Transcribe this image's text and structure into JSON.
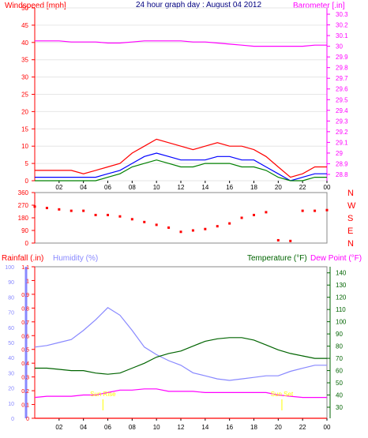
{
  "title": "24 hour graph day : August 04 2012",
  "colors": {
    "panel_bg": "#c0c0c0",
    "wind_speed": "#ff0000",
    "wind_avg": "#0000ff",
    "wind_green": "#008000",
    "barometer": "#ff00ff",
    "direction": "#ff0000",
    "rain": "#ff0000",
    "humidity": "#8888ff",
    "temperature": "#006400",
    "dewpoint": "#ff00ff",
    "sun_marker": "#ffff00",
    "title": "#000080"
  },
  "x_ticks": [
    "02",
    "04",
    "06",
    "08",
    "10",
    "12",
    "14",
    "16",
    "18",
    "20",
    "22",
    "00"
  ],
  "chart_data": [
    {
      "type": "line",
      "name": "wind-barometer",
      "left_axis": {
        "label": "Windspeed [mph]",
        "min": 0,
        "max": 50,
        "ticks": [
          "0",
          "5",
          "10",
          "15",
          "20",
          "25",
          "30",
          "35",
          "40",
          "45",
          "50"
        ]
      },
      "right_axis": {
        "label": "Barometer [.in]",
        "min": 28.8,
        "max": 30.3,
        "ticks": [
          "28.8",
          "28.9",
          "29",
          "29.1",
          "29.2",
          "29.3",
          "29.4",
          "29.5",
          "29.6",
          "29.7",
          "29.8",
          "29.9",
          "30",
          "30.1",
          "30.2",
          "30.3"
        ]
      },
      "x": [
        0,
        1,
        2,
        3,
        4,
        5,
        6,
        7,
        8,
        9,
        10,
        11,
        12,
        13,
        14,
        15,
        16,
        17,
        18,
        19,
        20,
        21,
        22,
        23,
        24
      ],
      "series": [
        {
          "axis": "right",
          "values": [
            30.05,
            30.05,
            30.05,
            30.04,
            30.04,
            30.04,
            30.03,
            30.03,
            30.04,
            30.05,
            30.05,
            30.05,
            30.05,
            30.04,
            30.04,
            30.03,
            30.02,
            30.01,
            30.0,
            30.0,
            30.0,
            30.0,
            30.0,
            30.01,
            30.01
          ]
        },
        {
          "axis": "left",
          "values": [
            3,
            3,
            3,
            3,
            2,
            3,
            4,
            5,
            8,
            10,
            12,
            11,
            10,
            9,
            10,
            11,
            10,
            10,
            9,
            7,
            4,
            1,
            2,
            4,
            4
          ]
        },
        {
          "axis": "left",
          "values": [
            1,
            1,
            1,
            1,
            1,
            1,
            2,
            3,
            5,
            7,
            8,
            7,
            6,
            6,
            6,
            7,
            7,
            6,
            6,
            4,
            2,
            0,
            1,
            2,
            2
          ]
        },
        {
          "axis": "left",
          "values": [
            0,
            0,
            0,
            0,
            0,
            0,
            1,
            2,
            4,
            5,
            6,
            5,
            4,
            4,
            5,
            5,
            5,
            4,
            4,
            3,
            1,
            0,
            0,
            1,
            1
          ]
        }
      ]
    },
    {
      "type": "scatter",
      "name": "wind-direction",
      "left_axis": {
        "min": 0,
        "max": 360,
        "ticks": [
          "0",
          "90",
          "180",
          "270",
          "360"
        ]
      },
      "right_labels": [
        "N",
        "W",
        "S",
        "E",
        "N"
      ],
      "x": [
        0,
        1,
        2,
        3,
        4,
        5,
        6,
        7,
        8,
        9,
        10,
        11,
        12,
        13,
        14,
        15,
        16,
        17,
        18,
        19,
        20,
        21,
        22,
        23,
        24
      ],
      "values": [
        260,
        250,
        240,
        230,
        230,
        200,
        200,
        190,
        170,
        150,
        130,
        110,
        80,
        90,
        100,
        120,
        140,
        180,
        200,
        220,
        20,
        15,
        230,
        230,
        235
      ]
    },
    {
      "type": "line",
      "name": "rain-humidity-temperature",
      "left_axis_rain": {
        "label": "Rainfall (.in)",
        "min": 0,
        "max": 1.1,
        "ticks": [
          "0",
          "0.1",
          "0.2",
          "0.3",
          "0.4",
          "0.5",
          "0.6",
          "0.7",
          "0.8",
          "0.9",
          "1",
          "1.1"
        ]
      },
      "left_axis_humidity": {
        "label": "Humidity (%)",
        "min": 0,
        "max": 100,
        "ticks": [
          "0",
          "10",
          "20",
          "30",
          "40",
          "50",
          "60",
          "70",
          "80",
          "90",
          "100"
        ]
      },
      "right_axis": {
        "label": "Temperature (°F)",
        "label2": "Dew Point (°F)",
        "min": 30,
        "max": 145,
        "ticks": [
          "30",
          "40",
          "50",
          "60",
          "70",
          "80",
          "90",
          "100",
          "110",
          "120",
          "130",
          "140"
        ]
      },
      "sun_markers": [
        {
          "label": "Sun Rise",
          "hour": 5.6
        },
        {
          "label": "Sun Set",
          "hour": 20.3
        }
      ],
      "x": [
        0,
        1,
        2,
        3,
        4,
        5,
        6,
        7,
        8,
        9,
        10,
        11,
        12,
        13,
        14,
        15,
        16,
        17,
        18,
        19,
        20,
        21,
        22,
        23,
        24
      ],
      "series": [
        {
          "axis": "humidity",
          "values": [
            47,
            48,
            50,
            52,
            58,
            65,
            73,
            68,
            58,
            47,
            42,
            38,
            35,
            30,
            28,
            26,
            25,
            26,
            27,
            28,
            28,
            31,
            33,
            35,
            35
          ]
        },
        {
          "axis": "temp",
          "values": [
            62,
            62,
            61,
            60,
            60,
            58,
            57,
            58,
            62,
            66,
            71,
            74,
            76,
            80,
            84,
            86,
            87,
            87,
            85,
            81,
            77,
            74,
            72,
            70,
            70
          ]
        },
        {
          "axis": "temp",
          "values": [
            38,
            39,
            39,
            39,
            40,
            40,
            42,
            44,
            44,
            45,
            45,
            43,
            43,
            43,
            42,
            42,
            42,
            42,
            42,
            42,
            40,
            39,
            38,
            38,
            38
          ]
        },
        {
          "axis": "rain",
          "values": [
            0,
            0,
            0,
            0,
            0,
            0,
            0,
            0,
            0,
            0,
            0,
            0,
            0,
            0,
            0,
            0,
            0,
            0,
            0,
            0,
            0,
            0,
            0,
            0,
            0
          ]
        }
      ]
    }
  ]
}
